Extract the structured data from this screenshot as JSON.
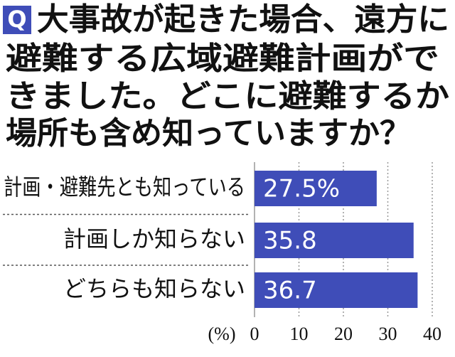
{
  "chart_data": {
    "type": "bar",
    "orientation": "horizontal",
    "marker": "Q",
    "title": "大事故が起きた場合、遠方に避難する広域避難計画ができました。どこに避難するか場所も含め知っていますか？",
    "categories": [
      "計画・避難先とも知っている",
      "計画しか知らない",
      "どちらも知らない"
    ],
    "values": [
      27.5,
      35.8,
      36.7
    ],
    "value_labels": [
      "27.5%",
      "35.8",
      "36.7"
    ],
    "color": "#3f4db8",
    "xlabel": "(%)",
    "xlim": [
      0,
      40
    ],
    "xticks": [
      0,
      10,
      20,
      30,
      40
    ],
    "grid": true
  }
}
